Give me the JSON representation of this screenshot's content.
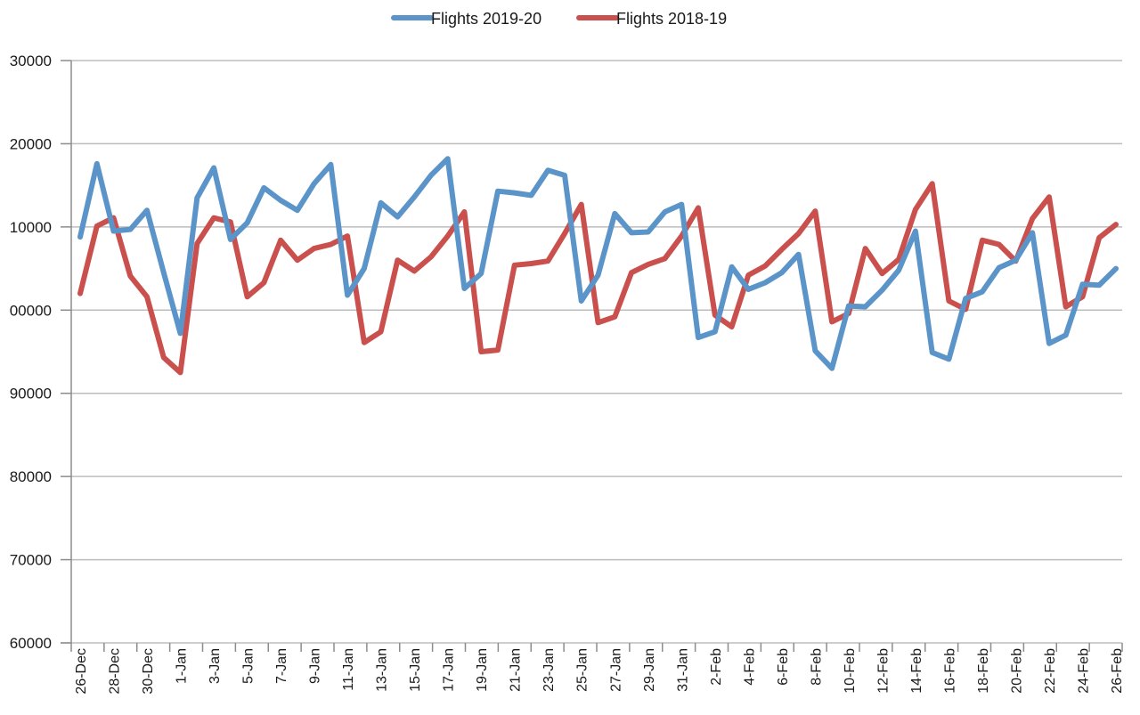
{
  "chart_data": {
    "type": "line",
    "legend_position": "top-center",
    "grid": true,
    "ylim": [
      60000,
      30000
    ],
    "y_ticks": [
      "60000",
      "70000",
      "80000",
      "90000",
      "00000",
      "10000",
      "20000",
      "30000"
    ],
    "x": [
      "26-Dec",
      "27-Dec",
      "28-Dec",
      "29-Dec",
      "30-Dec",
      "31-Dec",
      "1-Jan",
      "2-Jan",
      "3-Jan",
      "4-Jan",
      "5-Jan",
      "6-Jan",
      "7-Jan",
      "8-Jan",
      "9-Jan",
      "10-Jan",
      "11-Jan",
      "12-Jan",
      "13-Jan",
      "14-Jan",
      "15-Jan",
      "16-Jan",
      "17-Jan",
      "18-Jan",
      "19-Jan",
      "20-Jan",
      "21-Jan",
      "22-Jan",
      "23-Jan",
      "24-Jan",
      "25-Jan",
      "26-Jan",
      "27-Jan",
      "28-Jan",
      "29-Jan",
      "30-Jan",
      "31-Jan",
      "1-Feb",
      "2-Feb",
      "3-Feb",
      "4-Feb",
      "5-Feb",
      "6-Feb",
      "7-Feb",
      "8-Feb",
      "9-Feb",
      "10-Feb",
      "11-Feb",
      "12-Feb",
      "13-Feb",
      "14-Feb",
      "15-Feb",
      "16-Feb",
      "17-Feb",
      "18-Feb",
      "19-Feb",
      "20-Feb",
      "21-Feb",
      "22-Feb",
      "23-Feb",
      "24-Feb",
      "25-Feb",
      "26-Feb"
    ],
    "x_tick_labels": [
      "26-Dec",
      "28-Dec",
      "30-Dec",
      "1-Jan",
      "3-Jan",
      "5-Jan",
      "7-Jan",
      "9-Jan",
      "11-Jan",
      "13-Jan",
      "15-Jan",
      "17-Jan",
      "19-Jan",
      "21-Jan",
      "23-Jan",
      "25-Jan",
      "27-Jan",
      "29-Jan",
      "31-Jan",
      "2-Feb",
      "4-Feb",
      "6-Feb",
      "8-Feb",
      "10-Feb",
      "12-Feb",
      "14-Feb",
      "16-Feb",
      "18-Feb",
      "20-Feb",
      "22-Feb",
      "24-Feb",
      "26-Feb"
    ],
    "series": [
      {
        "name": "Flights 2019-20",
        "color": "#5b94c8",
        "values": [
          108800,
          117600,
          109500,
          109700,
          112000,
          104500,
          97200,
          113500,
          117100,
          108500,
          110500,
          114700,
          113200,
          112000,
          115200,
          117500,
          101800,
          105000,
          112900,
          111200,
          113600,
          116200,
          118200,
          102600,
          104400,
          114300,
          114100,
          113800,
          116800,
          116200,
          101100,
          104200,
          111600,
          109300,
          109400,
          111800,
          112700,
          96700,
          97400,
          105200,
          102500,
          103300,
          104500,
          106700,
          95100,
          93000,
          100500,
          100400,
          102400,
          104800,
          109500,
          94900,
          94100,
          101400,
          102200,
          105100,
          106000,
          109300,
          96000,
          97000,
          103100,
          103000,
          105000
        ]
      },
      {
        "name": "Flights 2018-19",
        "color": "#c9504d",
        "values": [
          102000,
          110100,
          111100,
          104100,
          101600,
          94300,
          92500,
          108000,
          111100,
          110600,
          101600,
          103300,
          108400,
          106000,
          107400,
          107900,
          108900,
          96100,
          97400,
          106000,
          104700,
          106400,
          108900,
          111800,
          95000,
          95200,
          105400,
          105600,
          105900,
          109200,
          112700,
          98500,
          99200,
          104500,
          105500,
          106200,
          108900,
          112300,
          99400,
          98000,
          104200,
          105300,
          107300,
          109200,
          111900,
          98600,
          99600,
          107400,
          104400,
          106100,
          112100,
          115200,
          101100,
          100100,
          108400,
          107900,
          105900,
          111000,
          113600,
          100400,
          101600,
          108700,
          110300
        ]
      }
    ]
  }
}
